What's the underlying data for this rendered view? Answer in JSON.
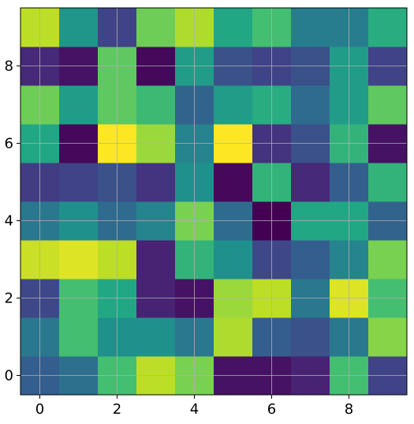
{
  "chart_data": {
    "type": "heatmap",
    "title": "",
    "xlabel": "",
    "ylabel": "",
    "colormap": "viridis",
    "xlim": [
      -0.5,
      9.5
    ],
    "ylim": [
      -0.5,
      9.5
    ],
    "xticks": [
      0,
      2,
      4,
      6,
      8
    ],
    "yticks": [
      0,
      2,
      4,
      6,
      8
    ],
    "xtick_labels": [
      "0",
      "2",
      "4",
      "6",
      "8"
    ],
    "ytick_labels": [
      "0",
      "2",
      "4",
      "6",
      "8"
    ],
    "grid": true,
    "values_normalized": [
      [
        0.3,
        0.37,
        0.7,
        0.9,
        0.8,
        0.05,
        0.05,
        0.1,
        0.7,
        0.2
      ],
      [
        0.4,
        0.7,
        0.5,
        0.5,
        0.4,
        0.88,
        0.3,
        0.25,
        0.4,
        0.82
      ],
      [
        0.22,
        0.7,
        0.6,
        0.1,
        0.05,
        0.85,
        0.9,
        0.4,
        0.95,
        0.7
      ],
      [
        0.92,
        0.95,
        0.9,
        0.1,
        0.65,
        0.5,
        0.22,
        0.3,
        0.45,
        0.8
      ],
      [
        0.4,
        0.5,
        0.35,
        0.45,
        0.8,
        0.35,
        0.0,
        0.6,
        0.6,
        0.32
      ],
      [
        0.18,
        0.2,
        0.25,
        0.15,
        0.5,
        0.02,
        0.65,
        0.12,
        0.3,
        0.65
      ],
      [
        0.6,
        0.02,
        1.0,
        0.85,
        0.45,
        1.0,
        0.15,
        0.25,
        0.65,
        0.05
      ],
      [
        0.78,
        0.55,
        0.75,
        0.68,
        0.32,
        0.55,
        0.62,
        0.35,
        0.55,
        0.75
      ],
      [
        0.12,
        0.05,
        0.75,
        0.02,
        0.55,
        0.25,
        0.2,
        0.25,
        0.55,
        0.2
      ],
      [
        0.9,
        0.52,
        0.2,
        0.78,
        0.88,
        0.6,
        0.7,
        0.42,
        0.42,
        0.62
      ]
    ]
  }
}
